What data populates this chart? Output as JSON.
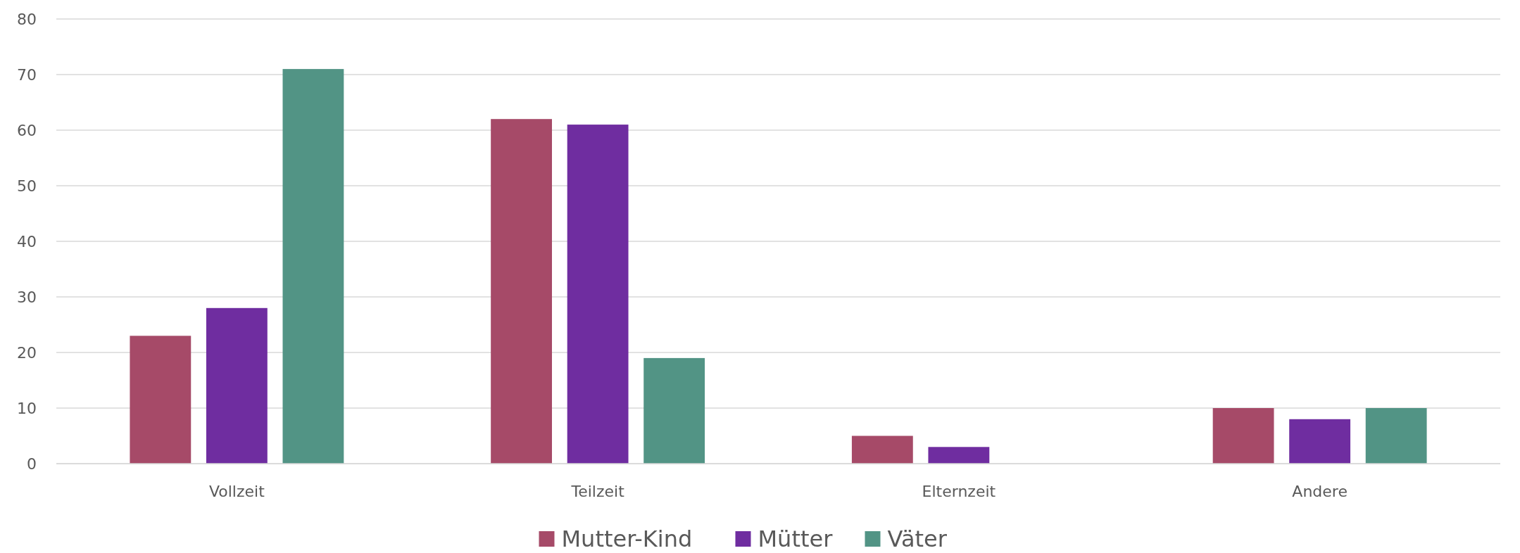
{
  "chart_data": {
    "type": "bar",
    "categories": [
      "Vollzeit",
      "Teilzeit",
      "Elternzeit",
      "Andere"
    ],
    "series": [
      {
        "name": "Mutter-Kind",
        "color": "#a64a68",
        "values": [
          23,
          62,
          5,
          10
        ]
      },
      {
        "name": "Mütter",
        "color": "#6f2da0",
        "values": [
          28,
          61,
          3,
          8
        ]
      },
      {
        "name": "Väter",
        "color": "#529485",
        "values": [
          71,
          19,
          0,
          10
        ]
      }
    ],
    "ylim": [
      0,
      80
    ],
    "yticks": [
      0,
      10,
      20,
      30,
      40,
      50,
      60,
      70,
      80
    ],
    "grid": "y",
    "legend": "bottom"
  }
}
